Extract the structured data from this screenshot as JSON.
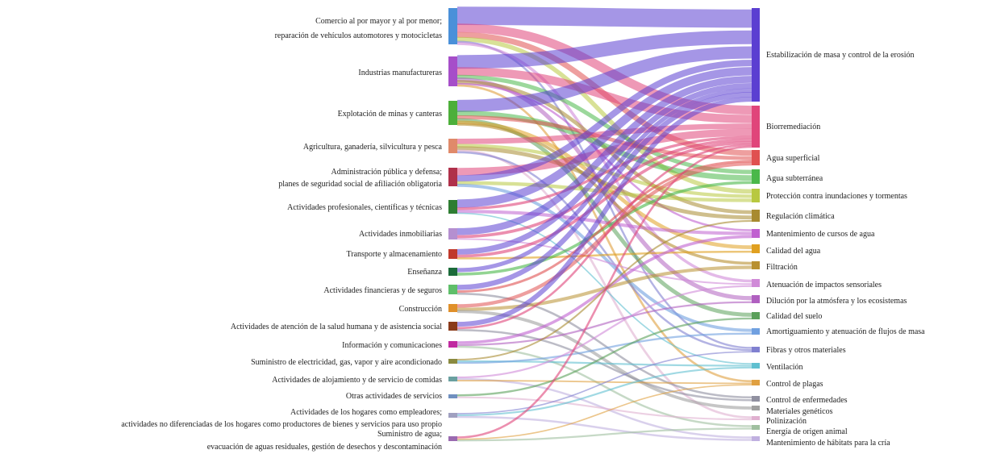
{
  "diagram": {
    "type": "sankey",
    "sources": [
      {
        "id": "s0",
        "label": [
          "Comercio al por mayor y al por menor;",
          "reparación de vehículos automotores y motocicletas"
        ],
        "color": "#4a90d9"
      },
      {
        "id": "s1",
        "label": [
          "Industrias manufactureras"
        ],
        "color": "#a64ec9"
      },
      {
        "id": "s2",
        "label": [
          "Explotación de minas y canteras"
        ],
        "color": "#4caf3a"
      },
      {
        "id": "s3",
        "label": [
          "Agricultura, ganadería, silvicultura y pesca"
        ],
        "color": "#e08a6a"
      },
      {
        "id": "s4",
        "label": [
          "Administración pública y defensa;",
          "planes de seguridad social de afiliación obligatoria"
        ],
        "color": "#b0304a"
      },
      {
        "id": "s5",
        "label": [
          "Actividades profesionales, científicas y técnicas"
        ],
        "color": "#2e7d32"
      },
      {
        "id": "s6",
        "label": [
          "Actividades inmobiliarias"
        ],
        "color": "#b58fd0"
      },
      {
        "id": "s7",
        "label": [
          "Transporte y almacenamiento"
        ],
        "color": "#c0392b"
      },
      {
        "id": "s8",
        "label": [
          "Enseñanza"
        ],
        "color": "#1b6b3a"
      },
      {
        "id": "s9",
        "label": [
          "Actividades financieras y de seguros"
        ],
        "color": "#5fbf6a"
      },
      {
        "id": "s10",
        "label": [
          "Construcción"
        ],
        "color": "#e0902a"
      },
      {
        "id": "s11",
        "label": [
          "Actividades de atención de la salud humana y de asistencia social"
        ],
        "color": "#8a3a1a"
      },
      {
        "id": "s12",
        "label": [
          "Información y comunicaciones"
        ],
        "color": "#c02aa0"
      },
      {
        "id": "s13",
        "label": [
          "Suministro de electricidad, gas, vapor y aire acondicionado"
        ],
        "color": "#8a8a40"
      },
      {
        "id": "s14",
        "label": [
          "Actividades de alojamiento y de servicio de comidas"
        ],
        "color": "#6aa0a0"
      },
      {
        "id": "s15",
        "label": [
          "Otras actividades de servicios"
        ],
        "color": "#7090c0"
      },
      {
        "id": "s16",
        "label": [
          "Actividades de los hogares como empleadores;",
          "actividades no diferenciadas de los hogares como productores de bienes y servicios para uso propio"
        ],
        "color": "#a0a0c0"
      },
      {
        "id": "s17",
        "label": [
          "Suministro de agua;",
          "evacuación de aguas residuales, gestión de desechos y descontaminación"
        ],
        "color": "#9a6ab0"
      }
    ],
    "targets": [
      {
        "id": "t0",
        "label": "Estabilización de masa y control de la erosión",
        "color": "#5b3fd1"
      },
      {
        "id": "t1",
        "label": "Biorremediación",
        "color": "#e0457a"
      },
      {
        "id": "t2",
        "label": "Agua superficial",
        "color": "#e05050"
      },
      {
        "id": "t3",
        "label": "Agua subterránea",
        "color": "#4ab84a"
      },
      {
        "id": "t4",
        "label": "Protección contra inundaciones y tormentas",
        "color": "#b8c840"
      },
      {
        "id": "t5",
        "label": "Regulación climática",
        "color": "#a88a30"
      },
      {
        "id": "t6",
        "label": "Mantenimiento de cursos de agua",
        "color": "#c060d0"
      },
      {
        "id": "t7",
        "label": "Calidad del agua",
        "color": "#e0a020"
      },
      {
        "id": "t8",
        "label": "Filtración",
        "color": "#b89030"
      },
      {
        "id": "t9",
        "label": "Atenuación de impactos sensoriales",
        "color": "#d08ad8"
      },
      {
        "id": "t10",
        "label": "Dilución por la atmósfera y los ecosistemas",
        "color": "#b060c0"
      },
      {
        "id": "t11",
        "label": "Calidad del suelo",
        "color": "#5aa05a"
      },
      {
        "id": "t12",
        "label": "Amortiguamiento y atenuación de flujos de masa",
        "color": "#70a0e0"
      },
      {
        "id": "t13",
        "label": "Fibras y otros materiales",
        "color": "#8080d0"
      },
      {
        "id": "t14",
        "label": "Ventilación",
        "color": "#60c0d0"
      },
      {
        "id": "t15",
        "label": "Control de plagas",
        "color": "#e0a040"
      },
      {
        "id": "t16",
        "label": "Control de enfermedades",
        "color": "#9090a0"
      },
      {
        "id": "t17",
        "label": "Materiales genéticos",
        "color": "#a0a0a0"
      },
      {
        "id": "t18",
        "label": "Polinización",
        "color": "#e0b0d0"
      },
      {
        "id": "t19",
        "label": "Energía de origen animal",
        "color": "#a0c0a0"
      },
      {
        "id": "t20",
        "label": "Mantenimiento de hábitats para la cría",
        "color": "#c0b0e0"
      }
    ]
  }
}
